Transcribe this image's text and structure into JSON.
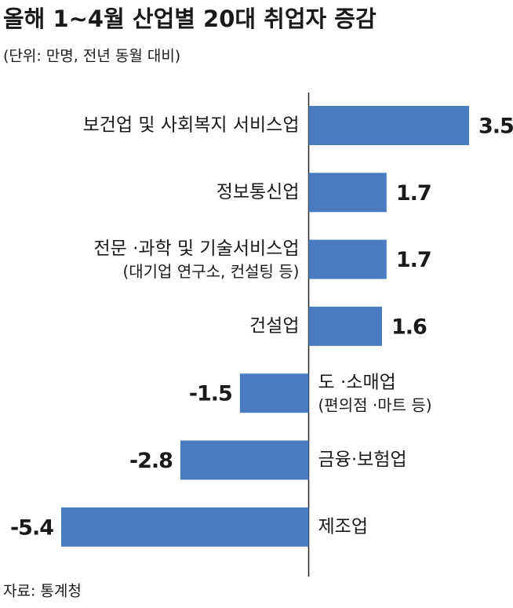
{
  "chart_data": {
    "type": "bar",
    "orientation": "horizontal",
    "title": "올해 1~4월 산업별 20대 취업자 증감",
    "subtitle": "(단위: 만명, 전년 동월 대비)",
    "source": "자료: 통계청",
    "categories": [
      [
        "보건업 및 사회복지 서비스업"
      ],
      [
        "정보통신업"
      ],
      [
        "전문 ·과학 및 기술서비스업",
        "(대기업 연구소, 컨설팅 등)"
      ],
      [
        "건설업"
      ],
      [
        "도 ·소매업",
        "(편의점 ·마트 등)"
      ],
      [
        "금융·보험업"
      ],
      [
        "제조업"
      ]
    ],
    "values": [
      3.5,
      1.7,
      1.7,
      1.6,
      -1.5,
      -2.8,
      -5.4
    ],
    "color": "#4a7bc0",
    "label_color": "#3d6db3",
    "xlim": [
      -5.4,
      3.5
    ]
  }
}
